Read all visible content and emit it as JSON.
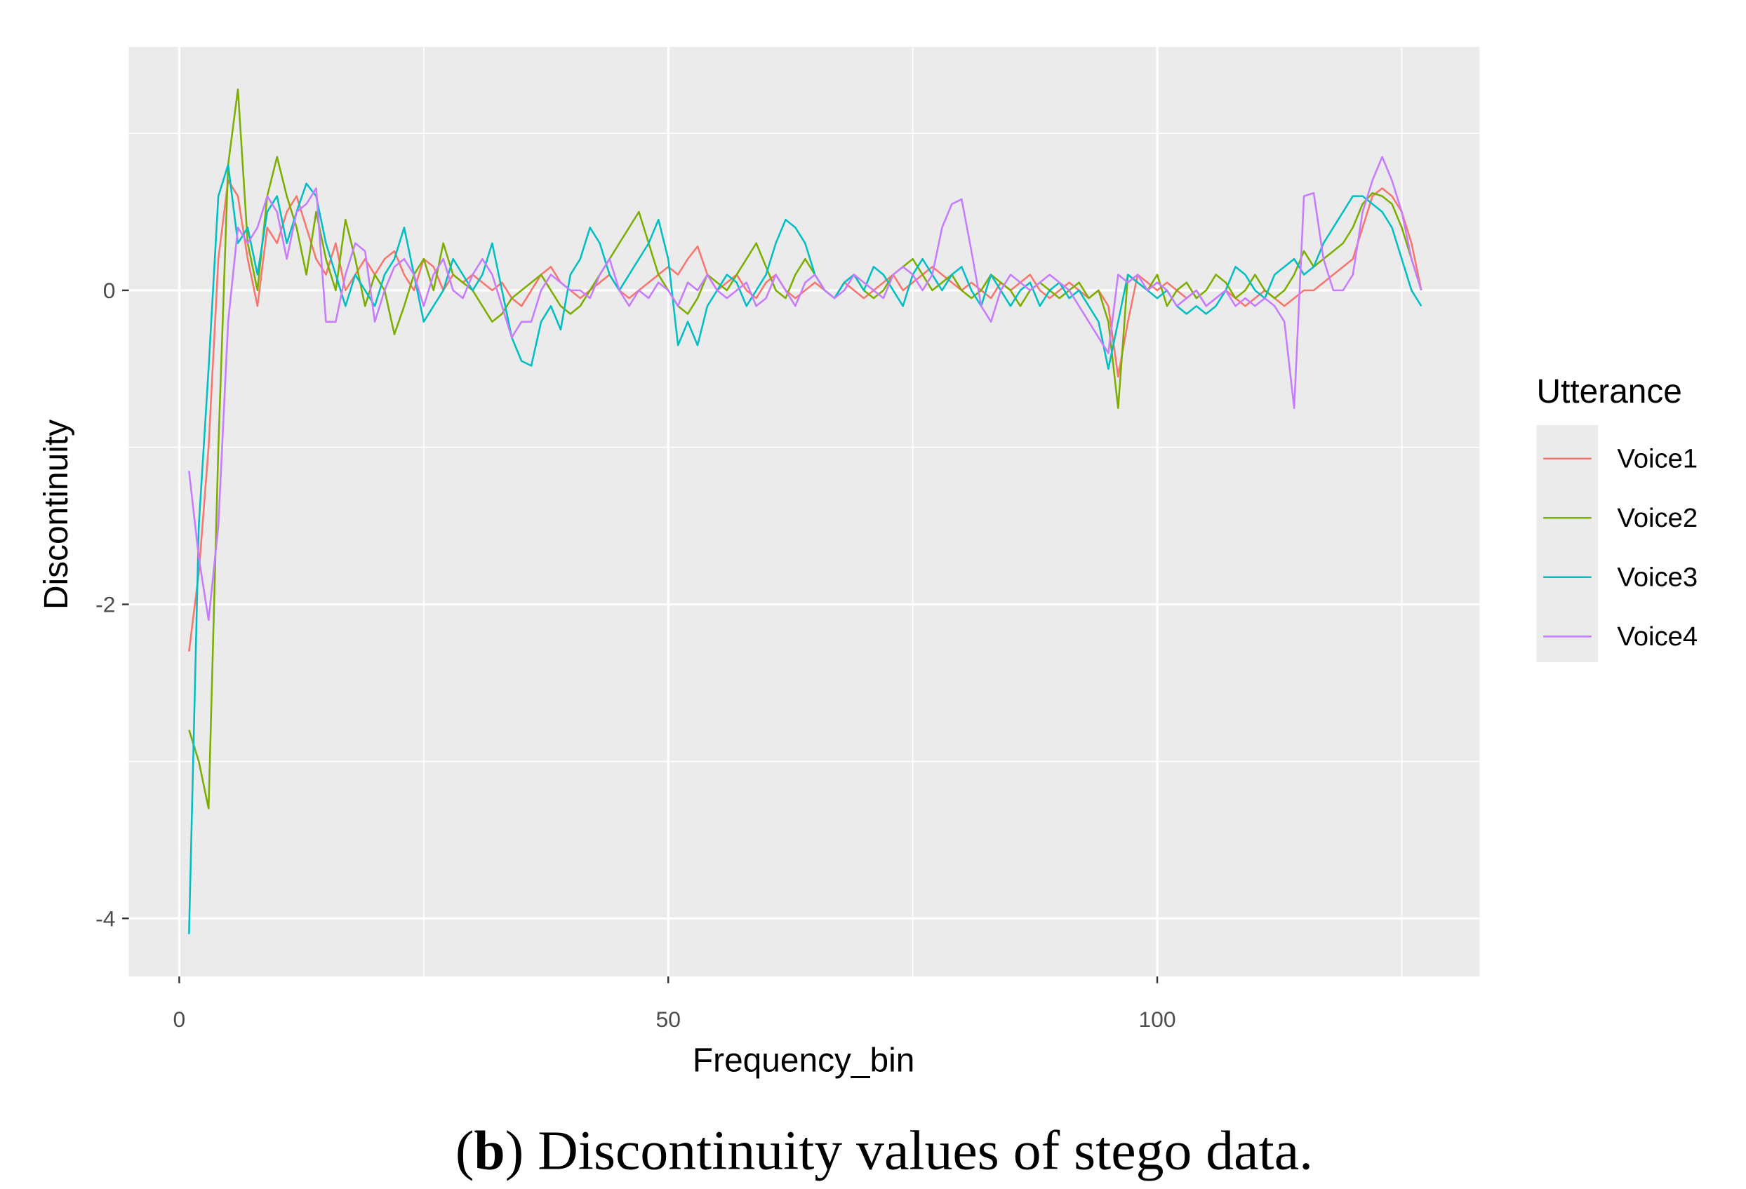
{
  "chart_data": {
    "type": "line",
    "x_label": "Frequency_bin",
    "y_label": "Discontinuity",
    "legend_title": "Utterance",
    "caption": [
      "(",
      "b",
      ") Discontinuity values of stego data."
    ],
    "xlim": [
      -5.15,
      132.95
    ],
    "ylim": [
      -4.37,
      1.55
    ],
    "xticks": [
      0,
      50,
      100
    ],
    "yticks": [
      -4,
      -2,
      0
    ],
    "x_minor_grid": [
      25,
      75,
      125
    ],
    "y_minor_grid": [
      -3,
      -1,
      1
    ],
    "grid": true,
    "legend": "right",
    "x": [
      1,
      2,
      3,
      4,
      5,
      6,
      7,
      8,
      9,
      10,
      11,
      12,
      13,
      14,
      15,
      16,
      17,
      18,
      19,
      20,
      21,
      22,
      23,
      24,
      25,
      26,
      27,
      28,
      29,
      30,
      31,
      32,
      33,
      34,
      35,
      36,
      37,
      38,
      39,
      40,
      41,
      42,
      43,
      44,
      45,
      46,
      47,
      48,
      49,
      50,
      51,
      52,
      53,
      54,
      55,
      56,
      57,
      58,
      59,
      60,
      61,
      62,
      63,
      64,
      65,
      66,
      67,
      68,
      69,
      70,
      71,
      72,
      73,
      74,
      75,
      76,
      77,
      78,
      79,
      80,
      81,
      82,
      83,
      84,
      85,
      86,
      87,
      88,
      89,
      90,
      91,
      92,
      93,
      94,
      95,
      96,
      97,
      98,
      99,
      100,
      101,
      102,
      103,
      104,
      105,
      106,
      107,
      108,
      109,
      110,
      111,
      112,
      113,
      114,
      115,
      116,
      117,
      118,
      119,
      120,
      121,
      122,
      123,
      124,
      125,
      126,
      127
    ],
    "series": [
      {
        "name": "Voice1",
        "color": "#F8766D",
        "values": [
          -2.3,
          -1.8,
          -1.0,
          0.2,
          0.7,
          0.6,
          0.2,
          -0.1,
          0.4,
          0.3,
          0.5,
          0.6,
          0.4,
          0.2,
          0.1,
          0.3,
          0.0,
          0.1,
          0.2,
          0.1,
          0.2,
          0.25,
          0.1,
          0.0,
          0.2,
          0.15,
          0.0,
          0.1,
          0.05,
          0.1,
          0.05,
          0.0,
          0.05,
          -0.05,
          -0.1,
          0.0,
          0.1,
          0.15,
          0.05,
          0.0,
          -0.05,
          0.0,
          0.05,
          0.1,
          0.0,
          -0.05,
          0.0,
          0.05,
          0.1,
          0.15,
          0.1,
          0.2,
          0.28,
          0.1,
          0.0,
          0.05,
          0.1,
          0.0,
          -0.05,
          0.05,
          0.1,
          0.0,
          -0.05,
          0.0,
          0.05,
          0.0,
          -0.05,
          0.05,
          0.0,
          -0.05,
          0.0,
          0.05,
          0.1,
          0.0,
          0.05,
          0.1,
          0.15,
          0.1,
          0.05,
          0.0,
          0.05,
          0.0,
          -0.05,
          0.05,
          0.0,
          0.05,
          0.1,
          0.0,
          -0.05,
          0.0,
          0.05,
          0.0,
          -0.05,
          0.0,
          -0.1,
          -0.55,
          -0.2,
          0.1,
          0.05,
          0.0,
          0.05,
          0.0,
          -0.05,
          0.0,
          -0.1,
          -0.05,
          0.0,
          -0.05,
          -0.1,
          -0.05,
          0.0,
          -0.05,
          -0.1,
          -0.05,
          0.0,
          0.0,
          0.05,
          0.1,
          0.15,
          0.2,
          0.4,
          0.6,
          0.65,
          0.6,
          0.5,
          0.3,
          0.0
        ]
      },
      {
        "name": "Voice2",
        "color": "#7CAE00",
        "values": [
          -2.8,
          -3.0,
          -3.3,
          -1.0,
          0.8,
          1.28,
          0.3,
          0.0,
          0.6,
          0.85,
          0.6,
          0.4,
          0.1,
          0.5,
          0.2,
          0.0,
          0.45,
          0.2,
          -0.1,
          0.1,
          0.0,
          -0.28,
          -0.1,
          0.1,
          0.2,
          0.0,
          0.3,
          0.1,
          0.05,
          0.0,
          -0.1,
          -0.2,
          -0.15,
          -0.05,
          0.0,
          0.05,
          0.1,
          0.0,
          -0.1,
          -0.15,
          -0.1,
          0.0,
          0.1,
          0.2,
          0.3,
          0.4,
          0.5,
          0.3,
          0.1,
          0.0,
          -0.1,
          -0.15,
          -0.05,
          0.1,
          0.05,
          0.0,
          0.1,
          0.2,
          0.3,
          0.15,
          0.0,
          -0.05,
          0.1,
          0.2,
          0.1,
          0.0,
          -0.05,
          0.05,
          0.1,
          0.0,
          -0.05,
          0.0,
          0.1,
          0.15,
          0.2,
          0.1,
          0.0,
          0.05,
          0.1,
          0.0,
          -0.05,
          0.0,
          0.1,
          0.05,
          0.0,
          -0.1,
          0.0,
          0.05,
          0.0,
          -0.05,
          0.0,
          0.05,
          -0.05,
          0.0,
          -0.2,
          -0.75,
          0.1,
          0.05,
          0.0,
          0.1,
          -0.1,
          0.0,
          0.05,
          -0.05,
          0.0,
          0.1,
          0.05,
          -0.05,
          0.0,
          0.1,
          0.0,
          -0.05,
          0.0,
          0.1,
          0.25,
          0.15,
          0.2,
          0.25,
          0.3,
          0.4,
          0.55,
          0.62,
          0.6,
          0.55,
          0.4,
          0.2,
          0.0
        ]
      },
      {
        "name": "Voice3",
        "color": "#00BFC4",
        "values": [
          -4.1,
          -1.5,
          -0.5,
          0.6,
          0.8,
          0.3,
          0.4,
          0.1,
          0.5,
          0.6,
          0.3,
          0.5,
          0.68,
          0.6,
          0.3,
          0.1,
          -0.1,
          0.1,
          0.0,
          -0.1,
          0.1,
          0.2,
          0.4,
          0.1,
          -0.2,
          -0.1,
          0.0,
          0.2,
          0.1,
          0.0,
          0.1,
          0.3,
          0.0,
          -0.3,
          -0.45,
          -0.48,
          -0.2,
          -0.1,
          -0.25,
          0.1,
          0.2,
          0.4,
          0.3,
          0.1,
          0.0,
          0.1,
          0.2,
          0.3,
          0.45,
          0.2,
          -0.35,
          -0.2,
          -0.35,
          -0.1,
          0.0,
          0.1,
          0.05,
          -0.1,
          0.0,
          0.1,
          0.3,
          0.45,
          0.4,
          0.3,
          0.1,
          0.0,
          -0.05,
          0.05,
          0.1,
          0.0,
          0.15,
          0.1,
          0.0,
          -0.1,
          0.1,
          0.2,
          0.1,
          0.0,
          0.1,
          0.15,
          0.0,
          -0.1,
          0.1,
          0.0,
          -0.1,
          0.0,
          0.05,
          -0.1,
          0.0,
          0.05,
          -0.05,
          0.0,
          -0.1,
          -0.2,
          -0.5,
          -0.2,
          0.1,
          0.05,
          0.0,
          -0.05,
          0.0,
          -0.1,
          -0.15,
          -0.1,
          -0.15,
          -0.1,
          0.0,
          0.15,
          0.1,
          0.0,
          -0.05,
          0.1,
          0.15,
          0.2,
          0.1,
          0.15,
          0.3,
          0.4,
          0.5,
          0.6,
          0.6,
          0.55,
          0.5,
          0.4,
          0.2,
          0.0,
          -0.1
        ]
      },
      {
        "name": "Voice4",
        "color": "#C77CFF",
        "values": [
          -1.15,
          -1.7,
          -2.1,
          -1.5,
          -0.2,
          0.4,
          0.3,
          0.4,
          0.6,
          0.5,
          0.2,
          0.5,
          0.55,
          0.65,
          -0.2,
          -0.2,
          0.1,
          0.3,
          0.25,
          -0.2,
          0.0,
          0.15,
          0.2,
          0.1,
          -0.1,
          0.1,
          0.2,
          0.0,
          -0.05,
          0.1,
          0.2,
          0.1,
          -0.1,
          -0.3,
          -0.2,
          -0.2,
          0.0,
          0.1,
          0.05,
          0.0,
          0.0,
          -0.05,
          0.1,
          0.2,
          0.0,
          -0.1,
          0.0,
          -0.05,
          0.05,
          0.0,
          -0.1,
          0.05,
          0.0,
          0.1,
          0.0,
          -0.05,
          0.0,
          0.05,
          -0.1,
          -0.05,
          0.1,
          0.0,
          -0.1,
          0.05,
          0.1,
          0.0,
          -0.05,
          0.0,
          0.1,
          0.05,
          0.0,
          -0.05,
          0.1,
          0.15,
          0.1,
          0.0,
          0.1,
          0.4,
          0.55,
          0.58,
          0.25,
          -0.1,
          -0.2,
          0.0,
          0.1,
          0.05,
          0.0,
          0.05,
          0.1,
          0.05,
          0.0,
          -0.1,
          -0.2,
          -0.3,
          -0.4,
          0.1,
          0.05,
          0.1,
          0.0,
          0.05,
          0.0,
          -0.1,
          -0.05,
          0.0,
          -0.1,
          -0.05,
          0.0,
          -0.1,
          -0.05,
          -0.1,
          -0.05,
          -0.1,
          -0.2,
          -0.75,
          0.6,
          0.62,
          0.2,
          0.0,
          0.0,
          0.1,
          0.5,
          0.7,
          0.85,
          0.7,
          0.5,
          0.2,
          0.0
        ]
      }
    ]
  }
}
